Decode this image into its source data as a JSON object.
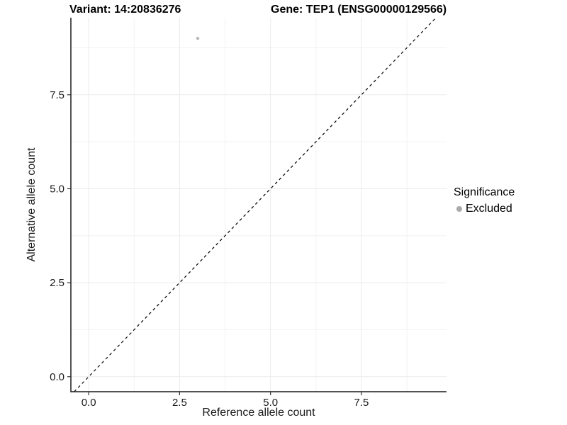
{
  "chart_data": {
    "type": "scatter",
    "titles": {
      "variant": "Variant: 14:20836276",
      "gene": "Gene: TEP1 (ENSG00000129566)"
    },
    "xlabel": "Reference allele count",
    "ylabel": "Alternative allele count",
    "xlim": [
      -0.49,
      9.84
    ],
    "ylim": [
      -0.4,
      9.55
    ],
    "x_ticks": [
      0,
      2.5,
      5,
      7.5
    ],
    "x_tick_labels": [
      "0.0",
      "2.5",
      "5.0",
      "7.5"
    ],
    "y_ticks": [
      0,
      2.5,
      5,
      7.5
    ],
    "y_tick_labels": [
      "0.0",
      "2.5",
      "5.0",
      "7.5"
    ],
    "x_minor_ticks": [
      1.25,
      3.75,
      6.25,
      8.75
    ],
    "y_minor_ticks": [
      1.25,
      3.75,
      6.25,
      8.75
    ],
    "grid": true,
    "legend": {
      "title": "Significance",
      "position": "right",
      "items": [
        {
          "label": "Excluded",
          "color": "#aaaaaa"
        }
      ]
    },
    "series": [
      {
        "name": "Excluded",
        "color": "#b5b5b5",
        "points": [
          {
            "x": 3,
            "y": 9
          }
        ]
      }
    ],
    "identity_line": {
      "slope": 1,
      "intercept": 0,
      "style": "dashed",
      "color": "#000000"
    }
  },
  "style": {
    "axis_line_color": "#1a1a1a",
    "tick_color": "#333333",
    "tick_label_color": "#1a1a1a",
    "grid_major_color": "#ebebeb",
    "grid_minor_color": "#f3f3f3",
    "background": "#ffffff"
  }
}
